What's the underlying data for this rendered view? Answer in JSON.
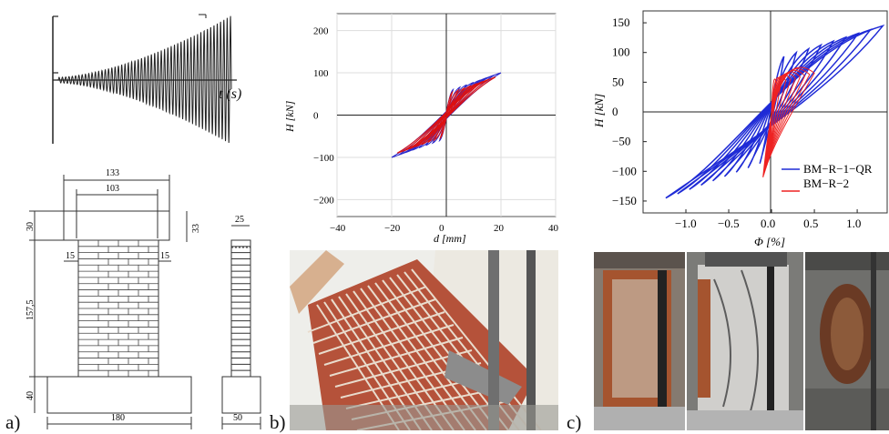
{
  "panel_labels": {
    "a": "a)",
    "b": "b)",
    "c": "c)"
  },
  "loading_history": {
    "axis_label": "t (s)"
  },
  "drawing": {
    "dims": {
      "top_width": "133",
      "inner_width": "103",
      "cap_height": "30",
      "cap_height_side": "33",
      "side_width": "25",
      "offset_left": "15",
      "offset_right": "15",
      "wall_height": "157,5",
      "base_height": "40",
      "base_width": "180",
      "side_base_width": "50"
    }
  },
  "chart_data": [
    {
      "type": "line",
      "title": "",
      "xlabel": "d [mm]",
      "ylabel": "H [kN]",
      "xlim": [
        -40,
        40
      ],
      "ylim": [
        -240,
        240
      ],
      "x_ticks": [
        "−40",
        "−20",
        "0",
        "20",
        "40"
      ],
      "y_ticks": [
        "200",
        "100",
        "0",
        "−100",
        "−200"
      ],
      "grid": true,
      "series": [
        {
          "color": "#2a2acc",
          "peaks": {
            "x": [
              -20,
              20
            ],
            "y": [
              -100,
              100
            ]
          }
        },
        {
          "color": "#dd1111",
          "peaks": {
            "x": [
              -18,
              18
            ],
            "y": [
              -90,
              90
            ]
          }
        }
      ]
    },
    {
      "type": "line",
      "title": "",
      "xlabel": "Φ [%]",
      "ylabel": "H [kN]",
      "xlim": [
        -1.5,
        1.35
      ],
      "ylim": [
        -170,
        170
      ],
      "x_ticks": [
        "−1.0",
        "−0.5",
        "0.0",
        "0.5",
        "1.0"
      ],
      "y_ticks": [
        "150",
        "100",
        "50",
        "0",
        "−50",
        "−100",
        "−150"
      ],
      "grid": false,
      "legend_position": "bottom-right",
      "series": [
        {
          "name": "BM−R−1−QR",
          "color": "#1f2bd6",
          "peaks": {
            "x": [
              -1.3,
              1.3
            ],
            "y": [
              -145,
              145
            ]
          }
        },
        {
          "name": "BM−R−2",
          "color": "#ee2222",
          "peaks": {
            "x": [
              -0.1,
              0.5
            ],
            "y": [
              -110,
              145
            ]
          }
        }
      ]
    }
  ],
  "colors": {
    "blue": "#1f2bd6",
    "red": "#ee2222",
    "brick": "#b5523a"
  }
}
